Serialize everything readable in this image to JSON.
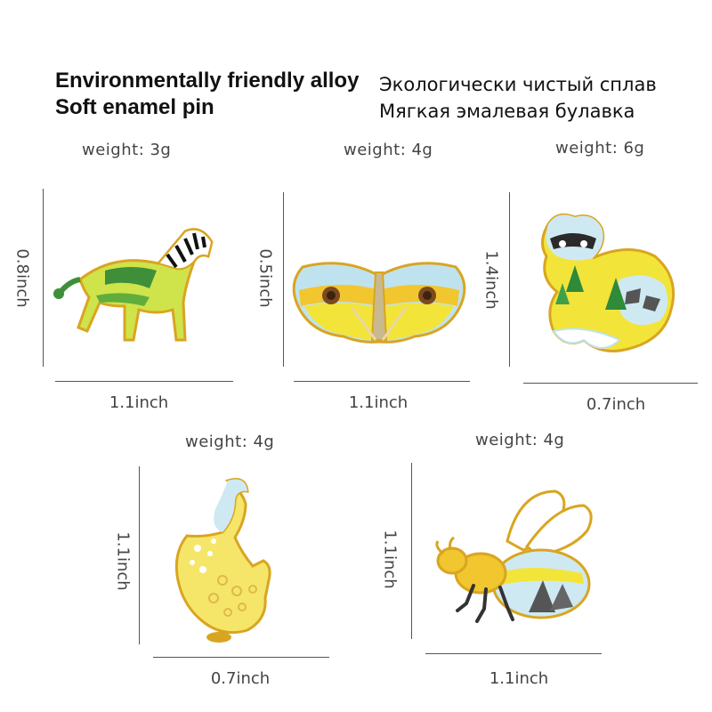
{
  "header": {
    "en_line1": "Environmentally friendly alloy",
    "en_line2": "Soft enamel pin",
    "ru_line1": "Экологически чистый сплав",
    "ru_line2": "Мягкая эмалевая булавка"
  },
  "pins": [
    {
      "name": "zebra",
      "weight": "weight: 3g",
      "width": "1.1inch",
      "height": "0.8inch"
    },
    {
      "name": "butterfly",
      "weight": "weight: 4g",
      "width": "1.1inch",
      "height": "0.5inch"
    },
    {
      "name": "raccoon",
      "weight": "weight: 6g",
      "width": "0.7inch",
      "height": "1.4inch"
    },
    {
      "name": "leopard",
      "weight": "weight: 4g",
      "width": "0.7inch",
      "height": "1.1inch"
    },
    {
      "name": "bee",
      "weight": "weight: 4g",
      "width": "1.1inch",
      "height": "1.1inch"
    }
  ],
  "colors": {
    "gold": "#d9a521",
    "yellow": "#f3e43a",
    "green": "#3f9a3a",
    "sky": "#bfe3ee"
  }
}
